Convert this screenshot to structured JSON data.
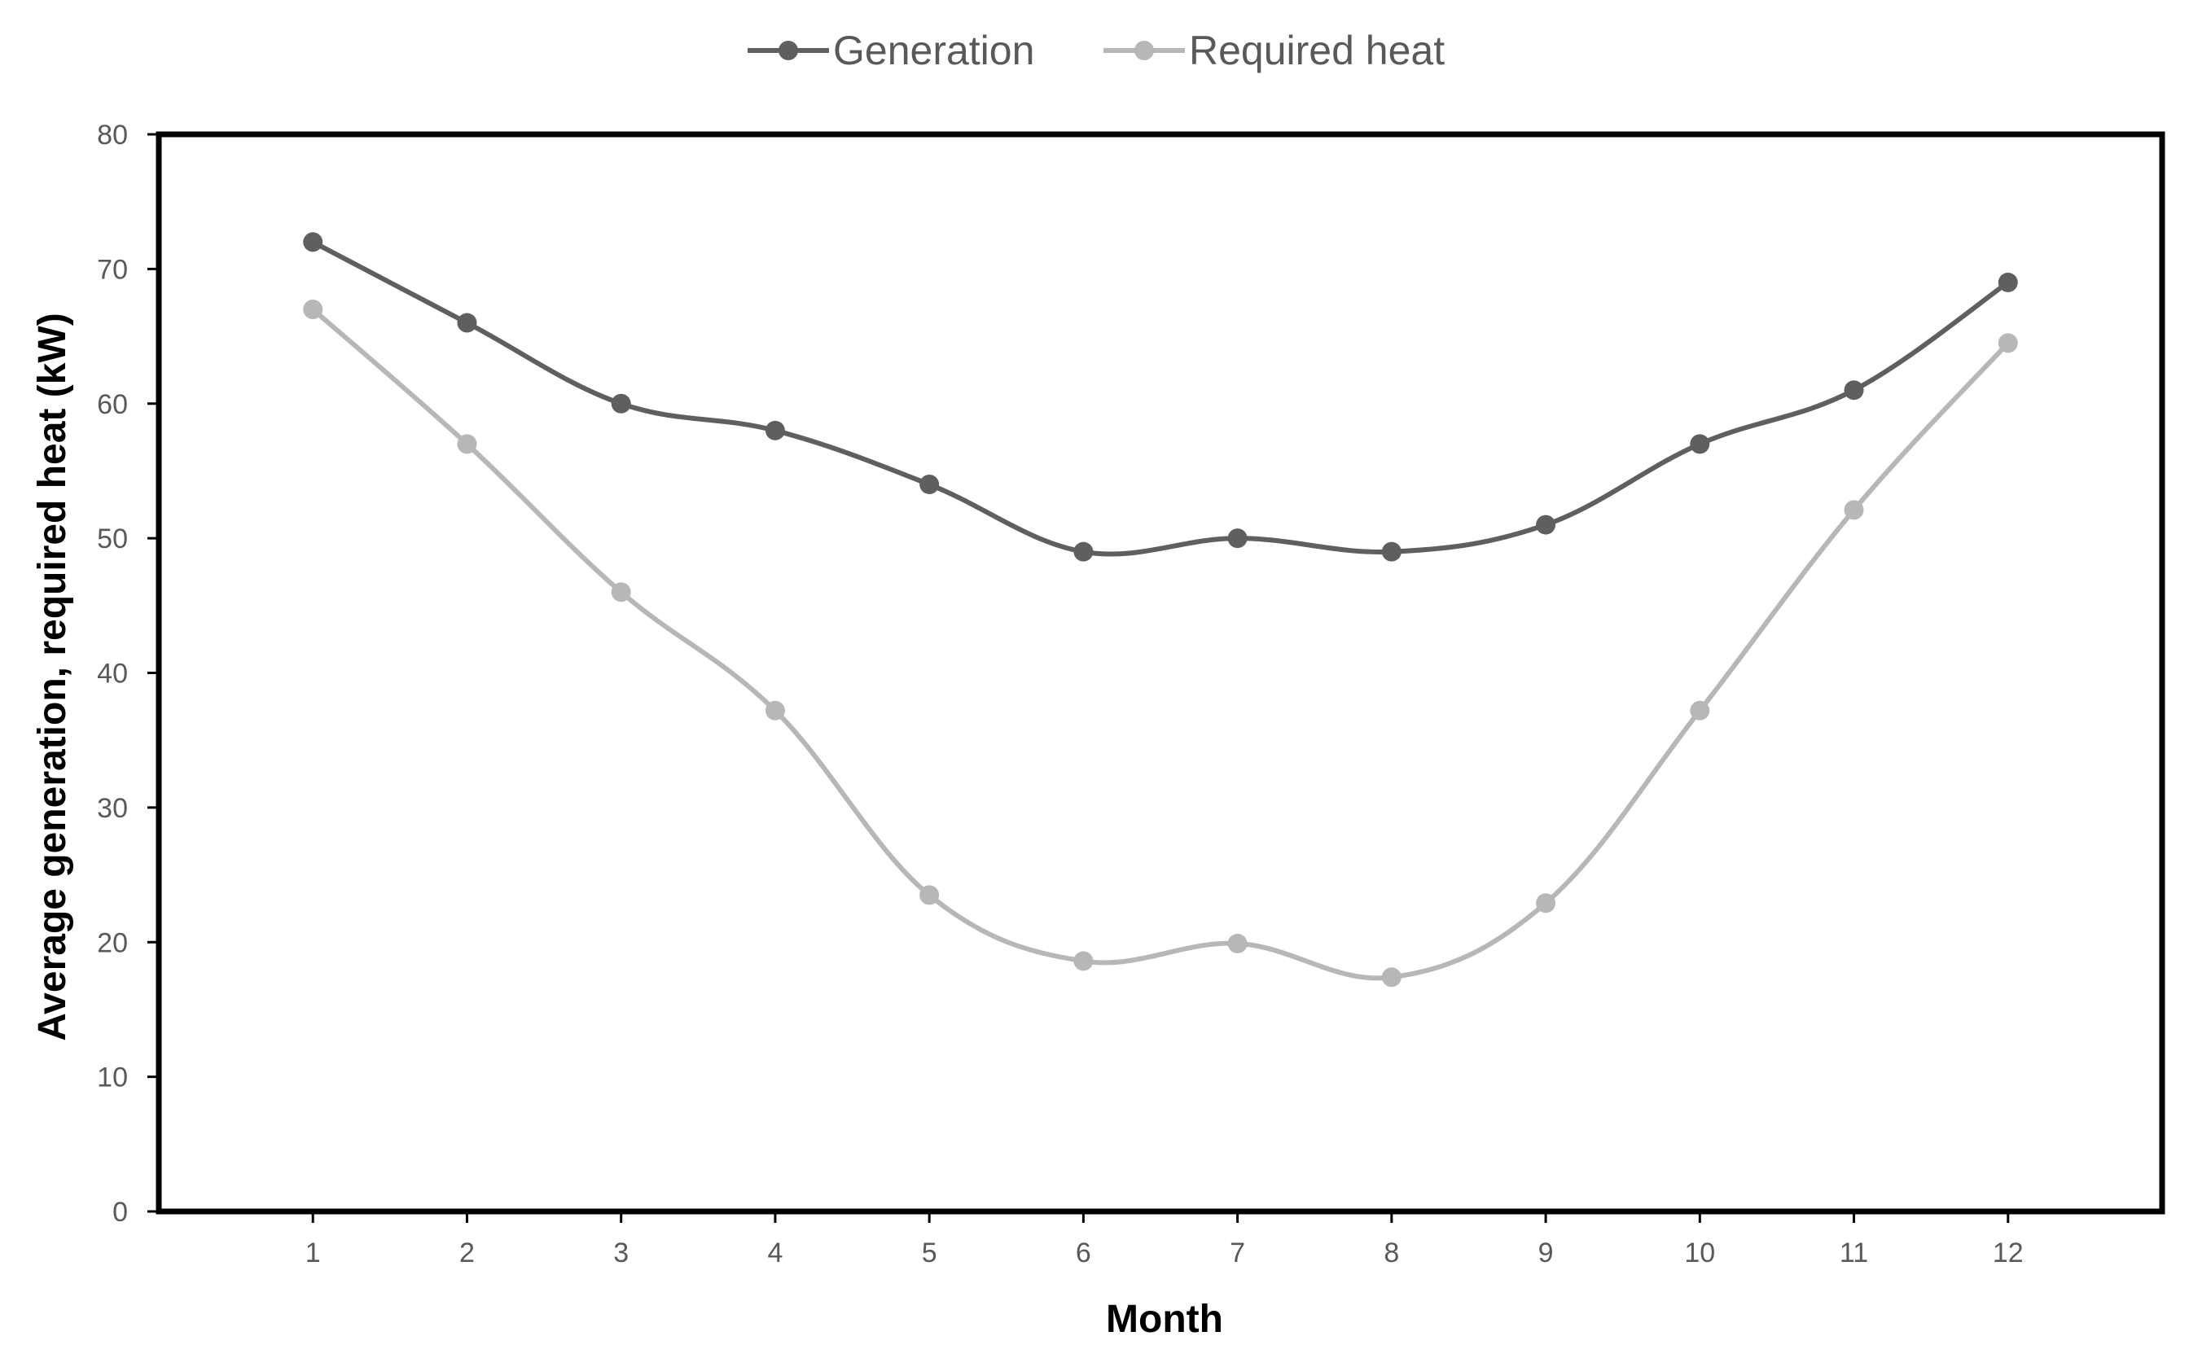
{
  "chart_data": {
    "type": "line",
    "title": "",
    "xlabel": "Month",
    "ylabel": "Average generation, required heat (kW)",
    "categories": [
      "1",
      "2",
      "3",
      "4",
      "5",
      "6",
      "7",
      "8",
      "9",
      "10",
      "11",
      "12"
    ],
    "ylim": [
      0,
      80
    ],
    "yticks": [
      "0",
      "10",
      "20",
      "30",
      "40",
      "50",
      "60",
      "70",
      "80"
    ],
    "grid": false,
    "legend_position": "top-center",
    "series": [
      {
        "name": "Generation",
        "color": "#5f5f5f",
        "values": [
          72,
          66,
          60,
          58,
          54,
          49,
          50,
          49,
          51,
          57,
          61,
          69
        ]
      },
      {
        "name": "Required heat",
        "color": "#b7b7b7",
        "values": [
          67,
          57,
          46,
          37.2,
          23.5,
          18.6,
          19.9,
          17.4,
          22.9,
          37.2,
          52.1,
          64.5
        ]
      }
    ]
  }
}
